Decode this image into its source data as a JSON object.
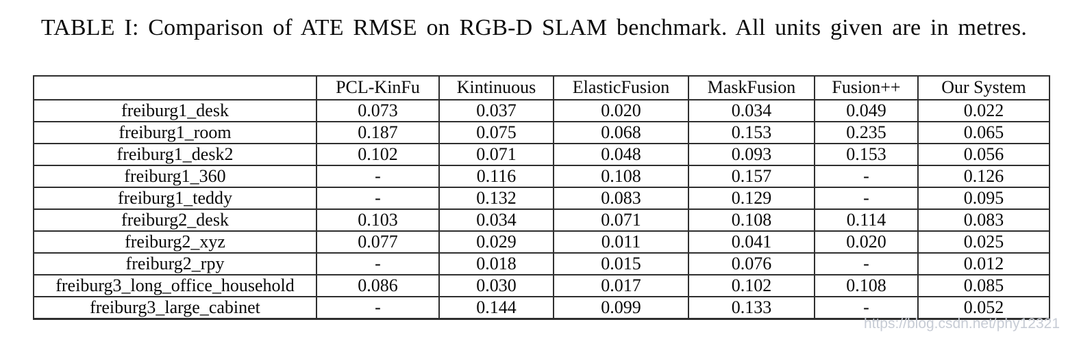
{
  "caption": "TABLE I: Comparison of ATE RMSE on RGB-D SLAM benchmark. All units given are in metres.",
  "watermark": "https://blog.csdn.net/phy12321",
  "table": {
    "headers": [
      "",
      "PCL-KinFu",
      "Kintinuous",
      "ElasticFusion",
      "MaskFusion",
      "Fusion++",
      "Our System"
    ],
    "rows": [
      {
        "label": "freiburg1_desk",
        "values": [
          "0.073",
          "0.037",
          "0.020",
          "0.034",
          "0.049",
          "0.022"
        ],
        "bold_index": 2
      },
      {
        "label": "freiburg1_room",
        "values": [
          "0.187",
          "0.075",
          "0.068",
          "0.153",
          "0.235",
          "0.065"
        ],
        "bold_index": 5
      },
      {
        "label": "freiburg1_desk2",
        "values": [
          "0.102",
          "0.071",
          "0.048",
          "0.093",
          "0.153",
          "0.056"
        ],
        "bold_index": 2
      },
      {
        "label": "freiburg1_360",
        "values": [
          "-",
          "0.116",
          "0.108",
          "0.157",
          "-",
          "0.126"
        ],
        "bold_index": 2
      },
      {
        "label": "freiburg1_teddy",
        "values": [
          "-",
          "0.132",
          "0.083",
          "0.129",
          "-",
          "0.095"
        ],
        "bold_index": 2
      },
      {
        "label": "freiburg2_desk",
        "values": [
          "0.103",
          "0.034",
          "0.071",
          "0.108",
          "0.114",
          "0.083"
        ],
        "bold_index": 1
      },
      {
        "label": "freiburg2_xyz",
        "values": [
          "0.077",
          "0.029",
          "0.011",
          "0.041",
          "0.020",
          "0.025"
        ],
        "bold_index": 2
      },
      {
        "label": "freiburg2_rpy",
        "values": [
          "-",
          "0.018",
          "0.015",
          "0.076",
          "-",
          "0.012"
        ],
        "bold_index": 5
      },
      {
        "label": "freiburg3_long_office_household",
        "values": [
          "0.086",
          "0.030",
          "0.017",
          "0.102",
          "0.108",
          "0.085"
        ],
        "bold_index": -1
      },
      {
        "label": "freiburg3_large_cabinet",
        "values": [
          "-",
          "0.144",
          "0.099",
          "0.133",
          "-",
          "0.052"
        ],
        "bold_index": 5
      }
    ]
  }
}
